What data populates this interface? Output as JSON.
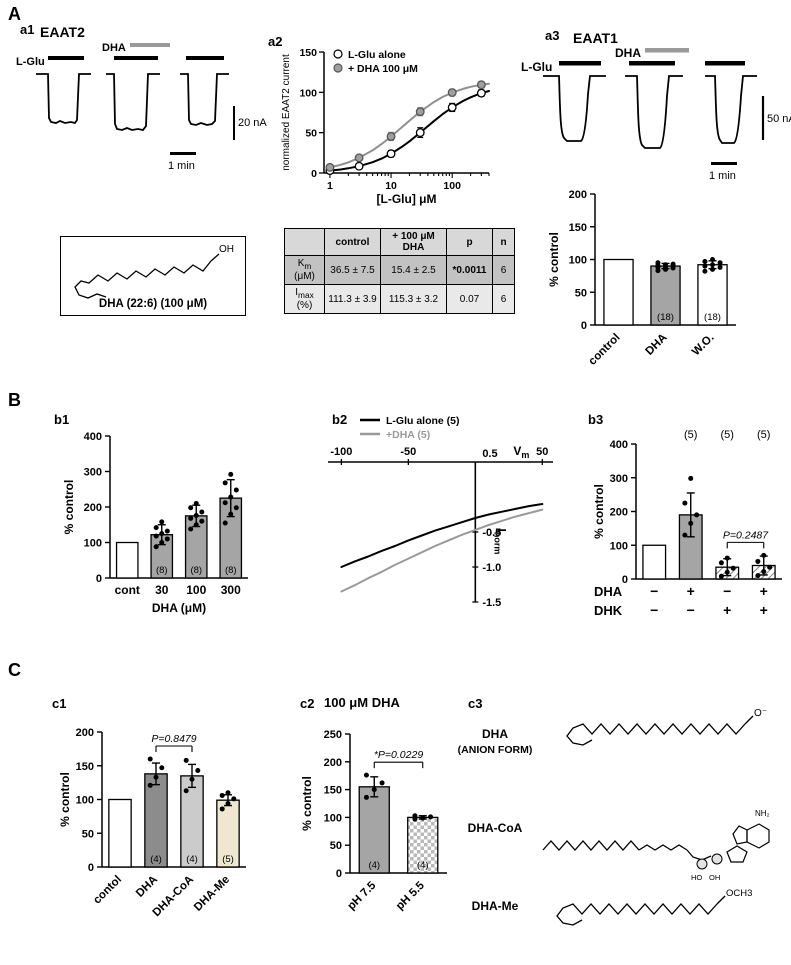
{
  "panels": {
    "A": "A",
    "B": "B",
    "C": "C",
    "a1": "a1",
    "a2": "a2",
    "a3": "a3",
    "b1": "b1",
    "b2": "b2",
    "b3": "b3",
    "c1": "c1",
    "c2": "c2",
    "c3": "c3"
  },
  "a1": {
    "title": "EAAT2",
    "lglu": "L-Glu",
    "dha": "DHA",
    "scale_v": "20 nA",
    "scale_h": "1 min",
    "structure_caption": "DHA (22:6) (100 μM)",
    "oh": "OH"
  },
  "a3": {
    "title": "EAAT1",
    "lglu": "L-Glu",
    "dha": "DHA",
    "scale_v": "50 nA",
    "scale_h": "1 min"
  },
  "a2_table": {
    "headers": [
      "control",
      "+ 100 μM DHA",
      "p",
      "n"
    ],
    "rows": [
      {
        "sym": "K",
        "sub": "m",
        "unit": "(μM)",
        "control": "36.5 ± 7.5",
        "dha": "15.4 ± 2.5",
        "p": "*0.0011",
        "n": "6"
      },
      {
        "sym": "I",
        "sub": "max",
        "unit": "(%)",
        "control": "111.3 ± 3.9",
        "dha": "115.3 ± 3.2",
        "p": "0.07",
        "n": "6"
      }
    ]
  },
  "c3": {
    "s1_line1": "DHA",
    "s1_line2": "(ANION FORM)",
    "s1_atom": "O⁻",
    "s2_label": "DHA-CoA",
    "s2_nh2": "NH₂",
    "s2_oh": "OH",
    "s2_ho": "HO",
    "s3_label": "DHA-Me",
    "s3_atom": "OCH3"
  },
  "chart_data": [
    {
      "id": "a2",
      "type": "line",
      "x_scale": "log",
      "axis_mode": "box",
      "title": "",
      "xlabel": "[L-Glu] μM",
      "ylabel": "normalized EAAT2 current",
      "xlim": [
        0.8,
        400
      ],
      "ylim": [
        0,
        150
      ],
      "xticks": [
        1,
        10,
        100
      ],
      "yticks": [
        0,
        50,
        100,
        150
      ],
      "legend": [
        "L-Glu alone",
        "+ DHA 100 μM"
      ],
      "series": [
        {
          "name": "L-Glu alone",
          "color": "#000000",
          "marker": "open",
          "x": [
            1,
            1.5,
            2,
            3,
            5,
            7,
            10,
            15,
            20,
            30,
            50,
            70,
            100,
            150,
            200,
            300,
            400
          ],
          "y": [
            3,
            4.4,
            5.8,
            8.4,
            13.4,
            17.9,
            23.9,
            32.3,
            39.3,
            50.1,
            64.2,
            73,
            81.3,
            89.3,
            93.9,
            99,
            101.7
          ],
          "mx": [
            1,
            3,
            10,
            30,
            100,
            300
          ],
          "my": [
            3,
            8.4,
            23.9,
            50.1,
            81.3,
            99
          ],
          "yerr": [
            1,
            2,
            4,
            6,
            5,
            4
          ]
        },
        {
          "name": "+ DHA 100 μM",
          "color": "#909090",
          "marker": "gray",
          "x": [
            1,
            1.5,
            2,
            3,
            5,
            7,
            10,
            15,
            20,
            30,
            50,
            70,
            100,
            150,
            200,
            300,
            400
          ],
          "y": [
            7,
            10.2,
            13.2,
            18.8,
            28.2,
            35.9,
            45.3,
            56.7,
            65,
            76,
            87.9,
            94.3,
            99.7,
            104.3,
            106.8,
            109.4,
            110.7
          ],
          "mx": [
            1,
            3,
            10,
            30,
            100,
            300
          ],
          "my": [
            7,
            18.8,
            45.3,
            76,
            99.7,
            109.4
          ],
          "yerr": [
            2,
            3,
            5,
            5,
            4,
            4
          ]
        }
      ]
    },
    {
      "id": "a3bar",
      "type": "bar",
      "ylabel": "% control",
      "ylim": [
        0,
        200
      ],
      "yticks": [
        0,
        50,
        100,
        150,
        200
      ],
      "categories": [
        "control",
        "DHA",
        "W.O."
      ],
      "values": [
        100,
        90,
        92
      ],
      "errors": [
        0,
        4,
        6
      ],
      "fills": [
        "white",
        "gray",
        "white"
      ],
      "counts": [
        "",
        "(18)",
        "(18)"
      ],
      "points": [
        [],
        [
          83,
          85,
          87,
          88,
          89,
          90,
          91,
          92,
          93,
          95
        ],
        [
          82,
          85,
          88,
          90,
          92,
          95,
          97,
          100
        ]
      ],
      "rotate_labels": true
    },
    {
      "id": "b1",
      "type": "bar",
      "ylabel": "% control",
      "xlabel": "DHA (μM)",
      "ylim": [
        0,
        400
      ],
      "yticks": [
        0,
        100,
        200,
        300,
        400
      ],
      "categories": [
        "cont",
        "30",
        "100",
        "300"
      ],
      "values": [
        100,
        122,
        175,
        225
      ],
      "errors": [
        0,
        28,
        30,
        52
      ],
      "fills": [
        "white",
        "gray",
        "gray",
        "gray"
      ],
      "counts": [
        "",
        "(8)",
        "(8)",
        "(8)"
      ],
      "points": [
        [],
        [
          88,
          100,
          110,
          118,
          125,
          132,
          142,
          158
        ],
        [
          138,
          150,
          160,
          168,
          176,
          186,
          198,
          210
        ],
        [
          155,
          180,
          198,
          212,
          228,
          248,
          268,
          292
        ]
      ],
      "rotate_labels": false
    },
    {
      "id": "b2",
      "type": "line",
      "x_scale": "linear",
      "axis_mode": "cross",
      "xlim": [
        -110,
        58
      ],
      "ylim": [
        -1.6,
        0.5
      ],
      "xticks": [
        -100,
        -50,
        50
      ],
      "yticks": [
        "0.5",
        "-0.5",
        "-1.0",
        "-1.5"
      ],
      "xl_sym": "V",
      "xl_sub": "m",
      "yl_sym": "I",
      "yl_sub": "norm",
      "legend": [
        "L-Glu alone (5)",
        "+DHA (5)"
      ],
      "series": [
        {
          "name": "L-Glu alone (5)",
          "color": "#000000",
          "marker": "none",
          "x": [
            -100,
            -90,
            -80,
            -70,
            -60,
            -50,
            -40,
            -30,
            -20,
            -10,
            0,
            10,
            20,
            30,
            40,
            50
          ],
          "y": [
            -1.0,
            -0.92,
            -0.85,
            -0.77,
            -0.7,
            -0.62,
            -0.55,
            -0.48,
            -0.42,
            -0.36,
            -0.3,
            -0.25,
            -0.21,
            -0.17,
            -0.13,
            -0.1
          ]
        },
        {
          "name": "+DHA (5)",
          "color": "#9a9a9a",
          "marker": "none",
          "x": [
            -100,
            -90,
            -80,
            -70,
            -60,
            -50,
            -40,
            -30,
            -20,
            -10,
            0,
            10,
            20,
            30,
            40,
            50
          ],
          "y": [
            -1.35,
            -1.26,
            -1.16,
            -1.07,
            -0.97,
            -0.88,
            -0.79,
            -0.7,
            -0.62,
            -0.54,
            -0.47,
            -0.4,
            -0.34,
            -0.28,
            -0.23,
            -0.18
          ]
        }
      ]
    },
    {
      "id": "b3",
      "type": "bar",
      "ylabel": "% control",
      "ylim": [
        0,
        400
      ],
      "yticks": [
        0,
        100,
        200,
        300,
        400
      ],
      "categories": [
        "",
        "",
        "",
        ""
      ],
      "values": [
        100,
        190,
        35,
        40
      ],
      "errors": [
        0,
        65,
        25,
        28
      ],
      "fills": [
        "white",
        "gray",
        "hatch",
        "hatch"
      ],
      "counts": [
        "",
        "",
        "",
        ""
      ],
      "counts_above": [
        "",
        "(5)",
        "(5)",
        "(5)"
      ],
      "points": [
        [],
        [
          130,
          165,
          190,
          225,
          298
        ],
        [
          8,
          20,
          32,
          48,
          62
        ],
        [
          10,
          22,
          35,
          52,
          70
        ]
      ],
      "annotation": {
        "text": "P=0.2487",
        "from": 2,
        "to": 3
      },
      "sign_rows": [
        {
          "label": "DHA",
          "signs": [
            "−",
            "+",
            "−",
            "+"
          ]
        },
        {
          "label": "DHK",
          "signs": [
            "−",
            "−",
            "+",
            "+"
          ]
        }
      ],
      "rotate_labels": false
    },
    {
      "id": "c1",
      "type": "bar",
      "ylabel": "% control",
      "ylim": [
        0,
        200
      ],
      "yticks": [
        0,
        50,
        100,
        150,
        200
      ],
      "categories": [
        "contol",
        "DHA",
        "DHA-CoA",
        "DHA-Me"
      ],
      "values": [
        100,
        138,
        135,
        99
      ],
      "errors": [
        0,
        16,
        17,
        8
      ],
      "fills": [
        "white",
        "darkgray",
        "lightgray",
        "cream"
      ],
      "counts": [
        "",
        "(4)",
        "(4)",
        "(5)"
      ],
      "points": [
        [],
        [
          121,
          133,
          147,
          160
        ],
        [
          113,
          130,
          143,
          158
        ],
        [
          86,
          94,
          101,
          106,
          110
        ]
      ],
      "annotation": {
        "text": "P=0.8479",
        "from": 1,
        "to": 2
      },
      "rotate_labels": true
    },
    {
      "id": "c2",
      "type": "bar",
      "title": "100 μM DHA",
      "ylabel": "% control",
      "ylim": [
        0,
        250
      ],
      "yticks": [
        0,
        50,
        100,
        150,
        200,
        250
      ],
      "categories": [
        "pH 7.5",
        "pH 5.5"
      ],
      "values": [
        155,
        100
      ],
      "errors": [
        18,
        3
      ],
      "fills": [
        "gray",
        "checker"
      ],
      "counts": [
        "(4)",
        "(4)"
      ],
      "points": [
        [
          136,
          150,
          162,
          176
        ],
        [
          97,
          99,
          101,
          103
        ]
      ],
      "annotation": {
        "text": "*P=0.0229",
        "from": 0,
        "to": 1
      },
      "rotate_labels": true
    }
  ]
}
